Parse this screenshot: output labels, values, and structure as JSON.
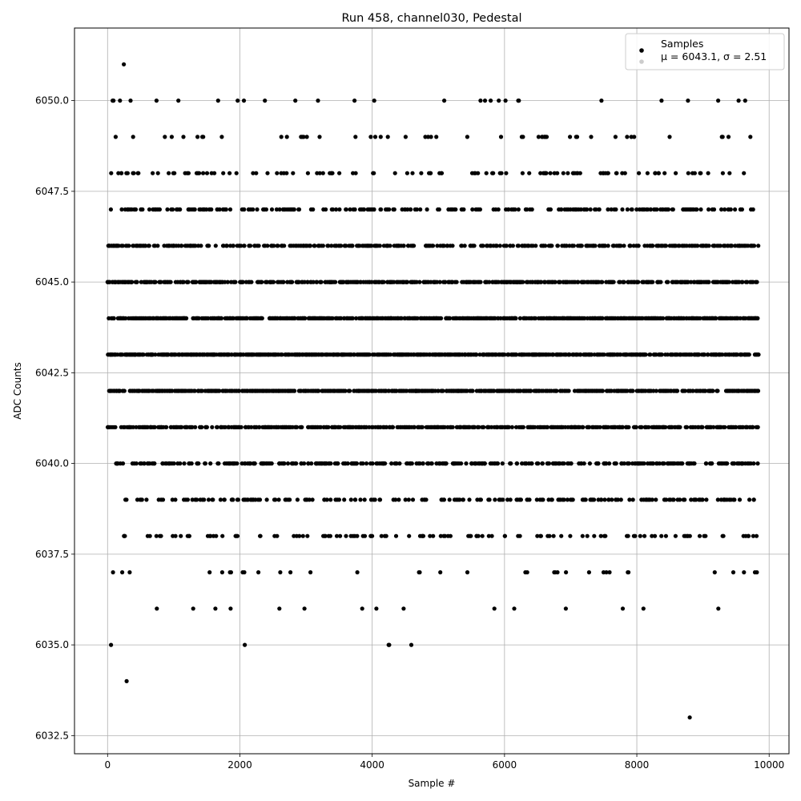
{
  "chart_data": {
    "type": "scatter",
    "title": "Run 458, channel030, Pedestal",
    "xlabel": "Sample #",
    "ylabel": "ADC Counts",
    "xlim": [
      -500,
      10300
    ],
    "ylim": [
      6032.0,
      6052.0
    ],
    "xticks": [
      0,
      2000,
      4000,
      6000,
      8000,
      10000
    ],
    "yticks": [
      6032.5,
      6035.0,
      6037.5,
      6040.0,
      6042.5,
      6045.0,
      6047.5,
      6050.0
    ],
    "xtick_labels": [
      "0",
      "2000",
      "4000",
      "6000",
      "8000",
      "10000"
    ],
    "ytick_labels": [
      "6032.5",
      "6035.0",
      "6037.5",
      "6040.0",
      "6042.5",
      "6045.0",
      "6047.5",
      "6050.0"
    ],
    "grid": true,
    "legend_position": "top-right",
    "legend": [
      "Samples",
      "μ = 6043.1, σ = 2.51"
    ],
    "colors": {
      "points": "#000000",
      "stats_marker": "#cccccc",
      "grid": "#b0b0b0"
    },
    "series": [
      {
        "name": "Samples",
        "n": 9840,
        "mean": 6043.1,
        "std": 2.51,
        "x_range": [
          0,
          9840
        ],
        "y_min": 6033,
        "y_max": 6051,
        "outliers": [
          {
            "x": 8800,
            "y": 6033
          }
        ]
      }
    ]
  }
}
